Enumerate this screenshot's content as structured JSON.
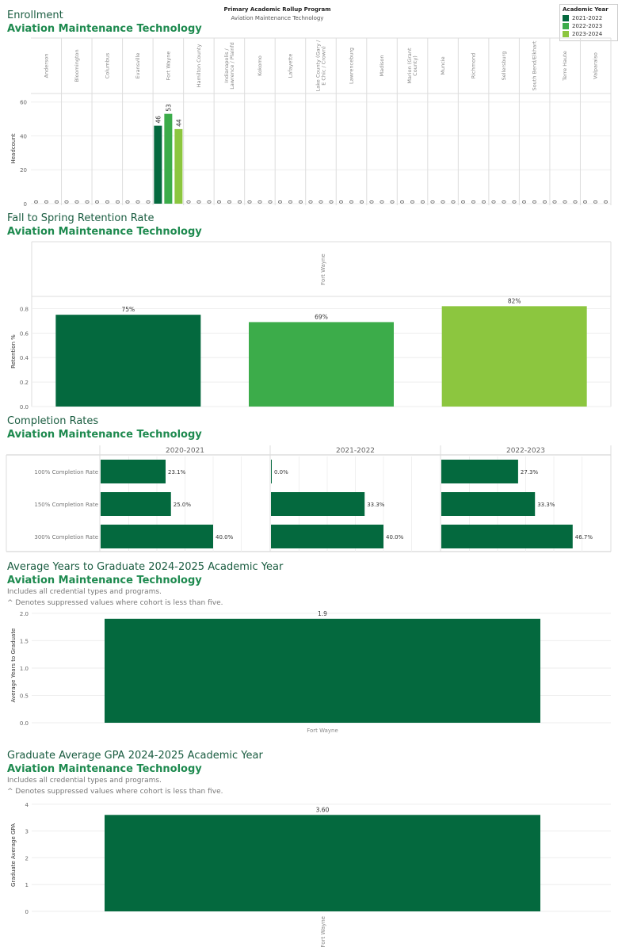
{
  "colors": {
    "y1": "#04693e",
    "y2": "#3cac4a",
    "y3": "#8cc63f",
    "dark": "#04693e"
  },
  "header": {
    "heading": "Primary Academic Rollup Program",
    "program": "Aviation Maintenance Technology"
  },
  "legend": {
    "title": "Academic Year",
    "items": [
      "2021-2022",
      "2022-2023",
      "2023-2024"
    ]
  },
  "enrollment": {
    "title": "Enrollment",
    "subtitle": "Aviation Maintenance Technology"
  },
  "retention": {
    "title": "Fall to Spring Retention Rate",
    "subtitle": "Aviation Maintenance Technology"
  },
  "completion": {
    "title": "Completion Rates",
    "subtitle": "Aviation Maintenance Technology"
  },
  "years": {
    "title": "Average Years to Graduate 2024-2025 Academic Year",
    "subtitle": "Aviation Maintenance Technology",
    "note1": "Includes all credential types and programs.",
    "note2": "^ Denotes suppressed values where cohort is less than five."
  },
  "gpa": {
    "title": "Graduate Average GPA 2024-2025 Academic Year",
    "subtitle": "Aviation Maintenance Technology",
    "note1": "Includes all credential types and programs.",
    "note2": "^ Denotes suppressed values where cohort is less than five."
  },
  "chart_data": [
    {
      "type": "bar",
      "title": "Enrollment",
      "ylabel": "Headcount",
      "ylim": [
        0,
        65
      ],
      "yticks": [
        0,
        20,
        40,
        60
      ],
      "legend_position": "top-right",
      "categories": [
        "Anderson",
        "Bloomington",
        "Columbus",
        "Evansville",
        "Fort Wayne",
        "Hamilton County",
        "Indianapolis / Lawrence / Plainfd",
        "Kokomo",
        "Lafayette",
        "Lake County (Gary / E Chic / Crown)",
        "Lawrenceburg",
        "Madison",
        "Marion (Grant County)",
        "Muncie",
        "Richmond",
        "Sellersburg",
        "South Bend/Elkhart",
        "Terre Haute",
        "Valparaiso"
      ],
      "series": [
        {
          "name": "2021-2022",
          "values": [
            0,
            0,
            0,
            0,
            46,
            0,
            0,
            0,
            0,
            0,
            0,
            0,
            0,
            0,
            0,
            0,
            0,
            0,
            0
          ]
        },
        {
          "name": "2022-2023",
          "values": [
            0,
            0,
            0,
            0,
            53,
            0,
            0,
            0,
            0,
            0,
            0,
            0,
            0,
            0,
            0,
            0,
            0,
            0,
            0
          ]
        },
        {
          "name": "2023-2024",
          "values": [
            0,
            0,
            0,
            0,
            44,
            0,
            0,
            0,
            0,
            0,
            0,
            0,
            0,
            0,
            0,
            0,
            0,
            0,
            0
          ]
        }
      ]
    },
    {
      "type": "bar",
      "title": "Fall to Spring Retention Rate",
      "ylabel": "Retention %",
      "ylim": [
        0,
        0.9
      ],
      "yticks": [
        "0.0",
        "0.2",
        "0.4",
        "0.6",
        "0.8"
      ],
      "facet": "Fort Wayne",
      "series": [
        {
          "name": "2021-2022",
          "value": 0.75,
          "label": "75%"
        },
        {
          "name": "2022-2023",
          "value": 0.69,
          "label": "69%"
        },
        {
          "name": "2023-2024",
          "value": 0.82,
          "label": "82%"
        }
      ]
    },
    {
      "type": "bar",
      "title": "Completion Rates",
      "orientation": "horizontal",
      "xlim": [
        0,
        0.6
      ],
      "rows": [
        "100% Completion Rate",
        "150% Completion Rate",
        "300% Completion Rate"
      ],
      "panels": [
        {
          "name": "2020-2021",
          "values": [
            0.231,
            0.25,
            0.4
          ],
          "labels": [
            "23.1%",
            "25.0%",
            "40.0%"
          ]
        },
        {
          "name": "2021-2022",
          "values": [
            0.0,
            0.333,
            0.4
          ],
          "labels": [
            "0.0%",
            "33.3%",
            "40.0%"
          ]
        },
        {
          "name": "2022-2023",
          "values": [
            0.273,
            0.333,
            0.467
          ],
          "labels": [
            "27.3%",
            "33.3%",
            "46.7%"
          ]
        }
      ]
    },
    {
      "type": "bar",
      "title": "Average Years to Graduate 2024-2025 Academic Year",
      "ylabel": "Average Years to Graduate",
      "ylim": [
        0,
        2.1
      ],
      "yticks": [
        "0.0",
        "0.5",
        "1.0",
        "1.5",
        "2.0"
      ],
      "categories": [
        "Fort Wayne"
      ],
      "values": [
        1.9
      ],
      "labels": [
        "1.9"
      ]
    },
    {
      "type": "bar",
      "title": "Graduate Average GPA 2024-2025 Academic Year",
      "ylabel": "Graduate Average GPA",
      "ylim": [
        0,
        4.2
      ],
      "yticks": [
        "0",
        "1",
        "2",
        "3",
        "4"
      ],
      "categories": [
        "Fort Wayne"
      ],
      "values": [
        3.6
      ],
      "labels": [
        "3.60"
      ]
    }
  ]
}
